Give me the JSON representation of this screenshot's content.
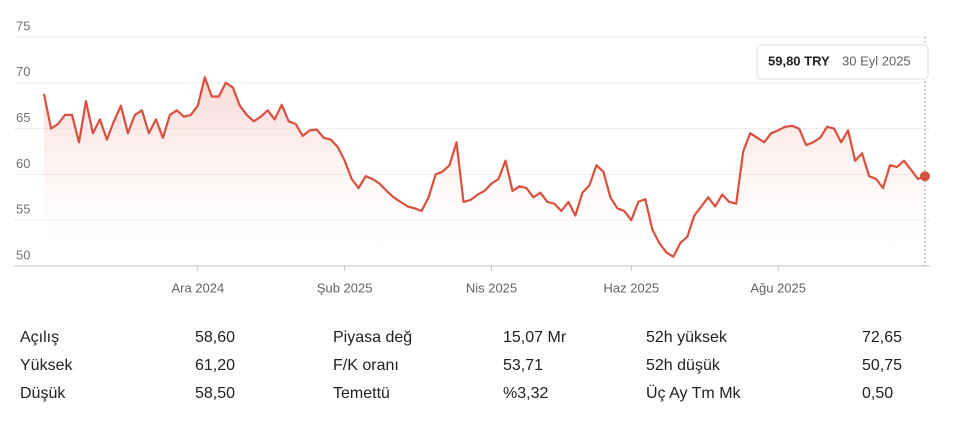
{
  "chart_data": {
    "type": "line",
    "color": "#d9503f",
    "grid": true,
    "ylim": [
      50,
      75
    ],
    "yticks": [
      50,
      55,
      60,
      65,
      70,
      75
    ],
    "categories": [
      null,
      null,
      null,
      null,
      null,
      null,
      null,
      null,
      null,
      null,
      null,
      null,
      null,
      null,
      null,
      null,
      null,
      null,
      null,
      null,
      null,
      null,
      "Ara 2024",
      null,
      null,
      null,
      null,
      null,
      null,
      null,
      null,
      null,
      null,
      null,
      null,
      null,
      null,
      null,
      null,
      null,
      null,
      null,
      null,
      "Şub 2025",
      null,
      null,
      null,
      null,
      null,
      null,
      null,
      null,
      null,
      null,
      null,
      null,
      null,
      null,
      null,
      null,
      null,
      null,
      null,
      null,
      "Nis 2025",
      null,
      null,
      null,
      null,
      null,
      null,
      null,
      null,
      null,
      null,
      null,
      null,
      null,
      null,
      null,
      null,
      null,
      null,
      null,
      "Haz 2025",
      null,
      null,
      null,
      null,
      null,
      null,
      null,
      null,
      null,
      null,
      null,
      null,
      null,
      null,
      null,
      null,
      null,
      null,
      null,
      null,
      "Ağu 2025",
      null,
      null,
      null,
      null,
      null,
      null,
      null,
      null,
      null,
      null,
      null,
      null,
      null,
      null,
      null,
      null,
      null,
      null,
      null,
      null,
      null
    ],
    "values": [
      68.8,
      65,
      65.5,
      66.5,
      66.5,
      63.5,
      68,
      64.5,
      66,
      63.8,
      65.8,
      67.5,
      64.5,
      66.5,
      67,
      64.5,
      66,
      64,
      66.5,
      67,
      66.3,
      66.5,
      67.5,
      70.6,
      68.5,
      68.5,
      70,
      69.5,
      67.5,
      66.5,
      65.8,
      66.3,
      67,
      66,
      67.6,
      65.8,
      65.5,
      64.2,
      64.8,
      64.9,
      64,
      63.8,
      63,
      61.5,
      59.5,
      58.5,
      59.8,
      59.5,
      59,
      58.2,
      57.5,
      57,
      56.5,
      56.3,
      56,
      57.5,
      60,
      60.3,
      61,
      63.5,
      57,
      57.2,
      57.8,
      58.2,
      59,
      59.5,
      61.5,
      58.2,
      58.7,
      58.5,
      57.5,
      58,
      57,
      56.8,
      56,
      57,
      55.5,
      58,
      58.8,
      61,
      60.3,
      57.5,
      56.3,
      56,
      55,
      57,
      57.3,
      54,
      52.5,
      51.5,
      51,
      52.5,
      53.2,
      55.5,
      56.5,
      57.5,
      56.5,
      57.8,
      57,
      56.8,
      62.5,
      64.5,
      64,
      63.5,
      64.5,
      64.8,
      65.2,
      65.3,
      65,
      63.2,
      63.5,
      64,
      65.2,
      65,
      63.5,
      64.8,
      61.5,
      62.3,
      59.8,
      59.5,
      58.5,
      61,
      60.8,
      61.5,
      60.5,
      59.5,
      59.8
    ],
    "tooltip": {
      "price": "59,80 TRY",
      "date": "30 Eyl 2025"
    }
  },
  "stats": [
    {
      "labels": [
        "Açılış",
        "Yüksek",
        "Düşük"
      ],
      "values": [
        "58,60",
        "61,20",
        "58,50"
      ]
    },
    {
      "labels": [
        "Piyasa değ",
        "F/K oranı",
        "Temettü"
      ],
      "values": [
        "15,07 Mr",
        "53,71",
        "%3,32"
      ]
    },
    {
      "labels": [
        "52h yüksek",
        "52h düşük",
        "Üç Ay Tm Mk"
      ],
      "values": [
        "72,65",
        "50,75",
        "0,50"
      ]
    }
  ]
}
